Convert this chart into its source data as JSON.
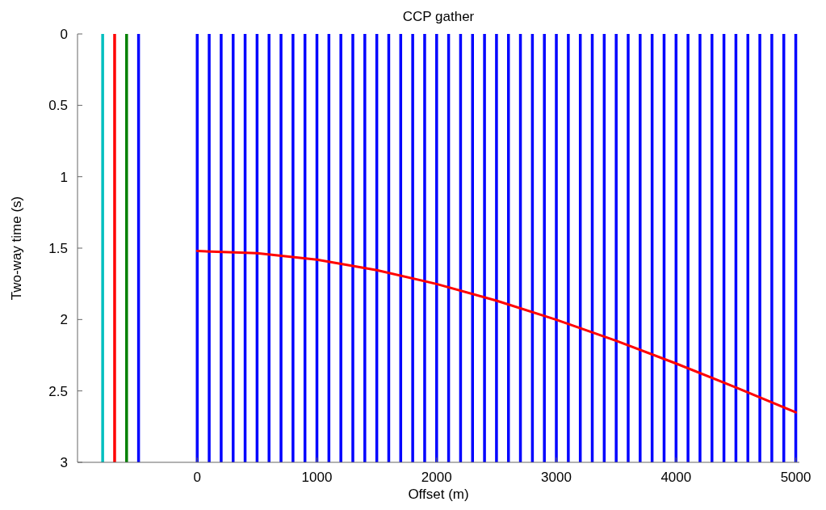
{
  "chart_data": {
    "type": "line",
    "title": "CCP gather",
    "xlabel": "Offset (m)",
    "ylabel": "Two-way time (s)",
    "xlim": [
      -1000,
      5030
    ],
    "ylim": [
      3,
      0
    ],
    "xticks": [
      0,
      1000,
      2000,
      3000,
      4000,
      5000
    ],
    "yticks": [
      0,
      0.5,
      1,
      1.5,
      2,
      2.5,
      3
    ],
    "grid": false,
    "series": [
      {
        "color": "#ff0000",
        "x": [
          0,
          500,
          1000,
          1500,
          2000,
          2500,
          3000,
          3500,
          4000,
          4500,
          5000
        ],
        "values": [
          1.52,
          1.535,
          1.581,
          1.654,
          1.751,
          1.868,
          2.002,
          2.149,
          2.308,
          2.476,
          2.65
        ]
      }
    ],
    "ref_lines": [
      {
        "axis": "x",
        "value": -790,
        "color": "#00bfbf"
      },
      {
        "axis": "x",
        "value": -690,
        "color": "#ff0000"
      },
      {
        "axis": "x",
        "value": -590,
        "color": "#008000"
      },
      {
        "axis": "x",
        "value": -490,
        "color": "#0000ff"
      },
      {
        "axis": "x",
        "value": 0,
        "color": "#0000ff"
      },
      {
        "axis": "x",
        "value": 100,
        "color": "#0000ff"
      },
      {
        "axis": "x",
        "value": 200,
        "color": "#0000ff"
      },
      {
        "axis": "x",
        "value": 300,
        "color": "#0000ff"
      },
      {
        "axis": "x",
        "value": 400,
        "color": "#0000ff"
      },
      {
        "axis": "x",
        "value": 500,
        "color": "#0000ff"
      },
      {
        "axis": "x",
        "value": 600,
        "color": "#0000ff"
      },
      {
        "axis": "x",
        "value": 700,
        "color": "#0000ff"
      },
      {
        "axis": "x",
        "value": 800,
        "color": "#0000ff"
      },
      {
        "axis": "x",
        "value": 900,
        "color": "#0000ff"
      },
      {
        "axis": "x",
        "value": 1000,
        "color": "#0000ff"
      },
      {
        "axis": "x",
        "value": 1100,
        "color": "#0000ff"
      },
      {
        "axis": "x",
        "value": 1200,
        "color": "#0000ff"
      },
      {
        "axis": "x",
        "value": 1300,
        "color": "#0000ff"
      },
      {
        "axis": "x",
        "value": 1400,
        "color": "#0000ff"
      },
      {
        "axis": "x",
        "value": 1500,
        "color": "#0000ff"
      },
      {
        "axis": "x",
        "value": 1600,
        "color": "#0000ff"
      },
      {
        "axis": "x",
        "value": 1700,
        "color": "#0000ff"
      },
      {
        "axis": "x",
        "value": 1800,
        "color": "#0000ff"
      },
      {
        "axis": "x",
        "value": 1900,
        "color": "#0000ff"
      },
      {
        "axis": "x",
        "value": 2000,
        "color": "#0000ff"
      },
      {
        "axis": "x",
        "value": 2100,
        "color": "#0000ff"
      },
      {
        "axis": "x",
        "value": 2200,
        "color": "#0000ff"
      },
      {
        "axis": "x",
        "value": 2300,
        "color": "#0000ff"
      },
      {
        "axis": "x",
        "value": 2400,
        "color": "#0000ff"
      },
      {
        "axis": "x",
        "value": 2500,
        "color": "#0000ff"
      },
      {
        "axis": "x",
        "value": 2600,
        "color": "#0000ff"
      },
      {
        "axis": "x",
        "value": 2700,
        "color": "#0000ff"
      },
      {
        "axis": "x",
        "value": 2800,
        "color": "#0000ff"
      },
      {
        "axis": "x",
        "value": 2900,
        "color": "#0000ff"
      },
      {
        "axis": "x",
        "value": 3000,
        "color": "#0000ff"
      },
      {
        "axis": "x",
        "value": 3100,
        "color": "#0000ff"
      },
      {
        "axis": "x",
        "value": 3200,
        "color": "#0000ff"
      },
      {
        "axis": "x",
        "value": 3300,
        "color": "#0000ff"
      },
      {
        "axis": "x",
        "value": 3400,
        "color": "#0000ff"
      },
      {
        "axis": "x",
        "value": 3500,
        "color": "#0000ff"
      },
      {
        "axis": "x",
        "value": 3600,
        "color": "#0000ff"
      },
      {
        "axis": "x",
        "value": 3700,
        "color": "#0000ff"
      },
      {
        "axis": "x",
        "value": 3800,
        "color": "#0000ff"
      },
      {
        "axis": "x",
        "value": 3900,
        "color": "#0000ff"
      },
      {
        "axis": "x",
        "value": 4000,
        "color": "#0000ff"
      },
      {
        "axis": "x",
        "value": 4100,
        "color": "#0000ff"
      },
      {
        "axis": "x",
        "value": 4200,
        "color": "#0000ff"
      },
      {
        "axis": "x",
        "value": 4300,
        "color": "#0000ff"
      },
      {
        "axis": "x",
        "value": 4400,
        "color": "#0000ff"
      },
      {
        "axis": "x",
        "value": 4500,
        "color": "#0000ff"
      },
      {
        "axis": "x",
        "value": 4600,
        "color": "#0000ff"
      },
      {
        "axis": "x",
        "value": 4700,
        "color": "#0000ff"
      },
      {
        "axis": "x",
        "value": 4800,
        "color": "#0000ff"
      },
      {
        "axis": "x",
        "value": 4900,
        "color": "#0000ff"
      },
      {
        "axis": "x",
        "value": 5000,
        "color": "#0000ff"
      }
    ]
  }
}
